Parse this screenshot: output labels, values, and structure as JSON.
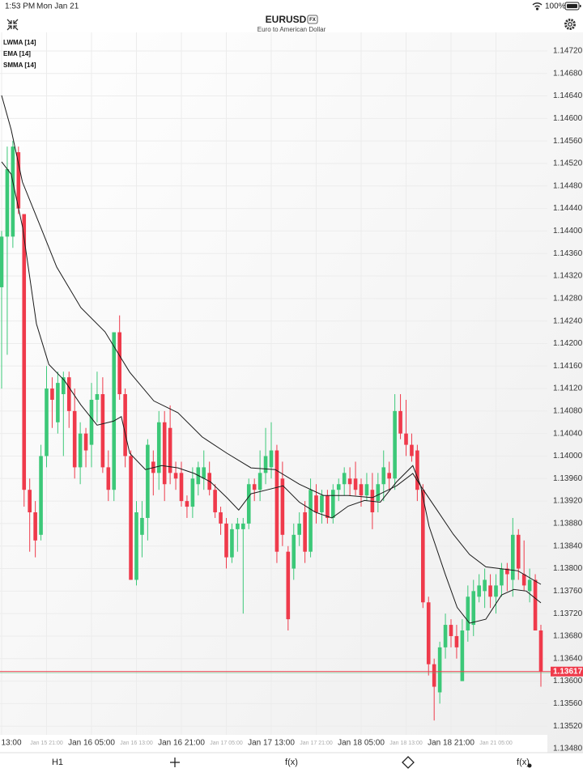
{
  "status_bar": {
    "time": "1:53 PM",
    "date": "Mon Jan 21",
    "battery": "100%"
  },
  "header": {
    "symbol": "EURUSD",
    "badge": "FX",
    "subtitle": "Euro to American Dollar"
  },
  "indicators": [
    "LWMA [14]",
    "EMA [14]",
    "SMMA [14]"
  ],
  "chart_data": {
    "type": "candlestick",
    "up_color": "#3cc878",
    "down_color": "#ef3a4b",
    "grid": true,
    "ylim": [
      1.1348,
      1.14753
    ],
    "yticks": [
      {
        "value": 1.1472,
        "label": "1.14720"
      },
      {
        "value": 1.1468,
        "label": "1.14680"
      },
      {
        "value": 1.1464,
        "label": "1.14640"
      },
      {
        "value": 1.146,
        "label": "1.14600"
      },
      {
        "value": 1.1456,
        "label": "1.14560"
      },
      {
        "value": 1.1452,
        "label": "1.14520"
      },
      {
        "value": 1.1448,
        "label": "1.14480"
      },
      {
        "value": 1.1444,
        "label": "1.14440"
      },
      {
        "value": 1.144,
        "label": "1.14400"
      },
      {
        "value": 1.1436,
        "label": "1.14360"
      },
      {
        "value": 1.1432,
        "label": "1.14320"
      },
      {
        "value": 1.1428,
        "label": "1.14280"
      },
      {
        "value": 1.1424,
        "label": "1.14240"
      },
      {
        "value": 1.142,
        "label": "1.14200"
      },
      {
        "value": 1.1416,
        "label": "1.14160"
      },
      {
        "value": 1.1412,
        "label": "1.14120"
      },
      {
        "value": 1.1408,
        "label": "1.14080"
      },
      {
        "value": 1.1404,
        "label": "1.14040"
      },
      {
        "value": 1.14,
        "label": "1.14000"
      },
      {
        "value": 1.1396,
        "label": "1.13960"
      },
      {
        "value": 1.1392,
        "label": "1.13920"
      },
      {
        "value": 1.1388,
        "label": "1.13880"
      },
      {
        "value": 1.1384,
        "label": "1.13840"
      },
      {
        "value": 1.138,
        "label": "1.13800"
      },
      {
        "value": 1.1376,
        "label": "1.13760"
      },
      {
        "value": 1.1372,
        "label": "1.13720"
      },
      {
        "value": 1.1368,
        "label": "1.13680"
      },
      {
        "value": 1.1364,
        "label": "1.13640"
      },
      {
        "value": 1.136,
        "label": "1.13600"
      },
      {
        "value": 1.1356,
        "label": "1.13560"
      },
      {
        "value": 1.1352,
        "label": "1.13520"
      },
      {
        "value": 1.1348,
        "label": "1.13480"
      }
    ],
    "x_labels": [
      {
        "at": 0,
        "label": "13:00",
        "major": true
      },
      {
        "at": 8,
        "label": "Jan 15 21:00",
        "major": false
      },
      {
        "at": 16,
        "label": "Jan 16 05:00",
        "major": true
      },
      {
        "at": 24,
        "label": "Jan 16 13:00",
        "major": false
      },
      {
        "at": 32,
        "label": "Jan 16 21:00",
        "major": true
      },
      {
        "at": 40,
        "label": "Jan 17 05:00",
        "major": false
      },
      {
        "at": 48,
        "label": "Jan 17 13:00",
        "major": true
      },
      {
        "at": 56,
        "label": "Jan 17 21:00",
        "major": false
      },
      {
        "at": 64,
        "label": "Jan 18 05:00",
        "major": true
      },
      {
        "at": 72,
        "label": "Jan 18 13:00",
        "major": false
      },
      {
        "at": 80,
        "label": "Jan 18 21:00",
        "major": true
      },
      {
        "at": 88,
        "label": "Jan 21 05:00",
        "major": false
      }
    ],
    "ohlc": [
      [
        1.143,
        1.144,
        1.1412,
        1.1439
      ],
      [
        1.1439,
        1.1455,
        1.1418,
        1.1451
      ],
      [
        1.1439,
        1.1456,
        1.1437,
        1.1455
      ],
      [
        1.1454,
        1.1455,
        1.1443,
        1.1444
      ],
      [
        1.1443,
        1.1443,
        1.1391,
        1.1394
      ],
      [
        1.1394,
        1.1396,
        1.1383,
        1.139
      ],
      [
        1.139,
        1.1392,
        1.1382,
        1.1385
      ],
      [
        1.1386,
        1.1402,
        1.1385,
        1.14
      ],
      [
        1.14,
        1.1416,
        1.1398,
        1.1412
      ],
      [
        1.1412,
        1.1414,
        1.1405,
        1.141
      ],
      [
        1.1406,
        1.1415,
        1.1404,
        1.1413
      ],
      [
        1.1411,
        1.1415,
        1.14,
        1.1414
      ],
      [
        1.1414,
        1.1415,
        1.1405,
        1.1408
      ],
      [
        1.1408,
        1.1412,
        1.1396,
        1.1398
      ],
      [
        1.1398,
        1.1406,
        1.1395,
        1.1404
      ],
      [
        1.1404,
        1.1405,
        1.1398,
        1.1401
      ],
      [
        1.1402,
        1.1413,
        1.1398,
        1.141
      ],
      [
        1.141,
        1.1415,
        1.1406,
        1.1411
      ],
      [
        1.1411,
        1.1414,
        1.1397,
        1.1398
      ],
      [
        1.1398,
        1.1401,
        1.1392,
        1.1394
      ],
      [
        1.1394,
        1.1422,
        1.1392,
        1.1422
      ],
      [
        1.1422,
        1.1425,
        1.141,
        1.1411
      ],
      [
        1.1411,
        1.1412,
        1.1398,
        1.14
      ],
      [
        1.14,
        1.1401,
        1.1378,
        1.1378
      ],
      [
        1.1378,
        1.1392,
        1.1377,
        1.139
      ],
      [
        1.1386,
        1.1392,
        1.1382,
        1.1389
      ],
      [
        1.1389,
        1.1403,
        1.1385,
        1.1402
      ],
      [
        1.1399,
        1.1401,
        1.1393,
        1.1397
      ],
      [
        1.1397,
        1.1408,
        1.1394,
        1.1406
      ],
      [
        1.1406,
        1.1408,
        1.1392,
        1.1395
      ],
      [
        1.1405,
        1.1409,
        1.1395,
        1.1397
      ],
      [
        1.1397,
        1.1399,
        1.1394,
        1.1396
      ],
      [
        1.1397,
        1.1399,
        1.1391,
        1.1392
      ],
      [
        1.1392,
        1.1393,
        1.1389,
        1.1391
      ],
      [
        1.1391,
        1.1398,
        1.1389,
        1.1396
      ],
      [
        1.1395,
        1.1399,
        1.1393,
        1.1398
      ],
      [
        1.1396,
        1.1401,
        1.1394,
        1.1398
      ],
      [
        1.1397,
        1.1399,
        1.1393,
        1.1394
      ],
      [
        1.1394,
        1.1395,
        1.1389,
        1.139
      ],
      [
        1.139,
        1.1391,
        1.1386,
        1.1388
      ],
      [
        1.1388,
        1.1389,
        1.138,
        1.1382
      ],
      [
        1.1382,
        1.1388,
        1.1381,
        1.1387
      ],
      [
        1.1387,
        1.1389,
        1.1383,
        1.1388
      ],
      [
        1.1387,
        1.1389,
        1.1372,
        1.1388
      ],
      [
        1.1388,
        1.1396,
        1.1387,
        1.1395
      ],
      [
        1.1395,
        1.1396,
        1.1392,
        1.1394
      ],
      [
        1.1394,
        1.1401,
        1.1392,
        1.1397
      ],
      [
        1.1397,
        1.1405,
        1.1395,
        1.14
      ],
      [
        1.1398,
        1.1406,
        1.1396,
        1.1401
      ],
      [
        1.1401,
        1.1402,
        1.1381,
        1.1383
      ],
      [
        1.1396,
        1.1399,
        1.1384,
        1.1386
      ],
      [
        1.1383,
        1.1384,
        1.1369,
        1.1371
      ],
      [
        1.138,
        1.1388,
        1.1378,
        1.1386
      ],
      [
        1.1386,
        1.139,
        1.1384,
        1.1388
      ],
      [
        1.139,
        1.1392,
        1.1381,
        1.1383
      ],
      [
        1.1383,
        1.1396,
        1.1382,
        1.1394
      ],
      [
        1.1393,
        1.1395,
        1.1388,
        1.139
      ],
      [
        1.139,
        1.1394,
        1.1388,
        1.1393
      ],
      [
        1.1393,
        1.1394,
        1.1388,
        1.1389
      ],
      [
        1.1389,
        1.1395,
        1.1388,
        1.1394
      ],
      [
        1.1394,
        1.1396,
        1.1392,
        1.1395
      ],
      [
        1.1395,
        1.1398,
        1.1393,
        1.1397
      ],
      [
        1.1396,
        1.1398,
        1.1393,
        1.1395
      ],
      [
        1.1396,
        1.1399,
        1.1393,
        1.1394
      ],
      [
        1.1395,
        1.1396,
        1.1391,
        1.1393
      ],
      [
        1.1393,
        1.1397,
        1.1392,
        1.1395
      ],
      [
        1.1394,
        1.1397,
        1.1387,
        1.139
      ],
      [
        1.1392,
        1.1397,
        1.139,
        1.1395
      ],
      [
        1.1395,
        1.1401,
        1.1392,
        1.1398
      ],
      [
        1.1397,
        1.1399,
        1.1394,
        1.1396
      ],
      [
        1.1396,
        1.1411,
        1.1394,
        1.1408
      ],
      [
        1.1408,
        1.1411,
        1.1403,
        1.1404
      ],
      [
        1.1404,
        1.141,
        1.14,
        1.1402
      ],
      [
        1.1402,
        1.1404,
        1.1399,
        1.14
      ],
      [
        1.1401,
        1.1402,
        1.1392,
        1.1394
      ],
      [
        1.1394,
        1.1395,
        1.1373,
        1.1374
      ],
      [
        1.1374,
        1.1375,
        1.1361,
        1.1363
      ],
      [
        1.1363,
        1.1364,
        1.1353,
        1.1359
      ],
      [
        1.1358,
        1.1367,
        1.1356,
        1.1366
      ],
      [
        1.1366,
        1.1372,
        1.1364,
        1.137
      ],
      [
        1.137,
        1.1371,
        1.1366,
        1.1368
      ],
      [
        1.1368,
        1.137,
        1.1364,
        1.1366
      ],
      [
        1.136,
        1.1371,
        1.136,
        1.1369
      ],
      [
        1.1369,
        1.1377,
        1.1367,
        1.1375
      ],
      [
        1.137,
        1.1378,
        1.1368,
        1.1376
      ],
      [
        1.1375,
        1.1379,
        1.1374,
        1.1377
      ],
      [
        1.1376,
        1.138,
        1.1373,
        1.1378
      ],
      [
        1.1377,
        1.1379,
        1.1373,
        1.1375
      ],
      [
        1.1375,
        1.1379,
        1.1372,
        1.1377
      ],
      [
        1.1377,
        1.1381,
        1.1375,
        1.138
      ],
      [
        1.138,
        1.1381,
        1.1376,
        1.1379
      ],
      [
        1.1378,
        1.1389,
        1.1375,
        1.1386
      ],
      [
        1.1386,
        1.1387,
        1.1378,
        1.138
      ],
      [
        1.1379,
        1.1385,
        1.1376,
        1.1377
      ],
      [
        1.1376,
        1.138,
        1.1374,
        1.1378
      ],
      [
        1.1378,
        1.1379,
        1.1369,
        1.1369
      ],
      [
        1.1369,
        1.137,
        1.1359,
        1.13617
      ]
    ],
    "lines": [
      {
        "color": "#1a1a1a",
        "x": [
          0,
          1.7,
          3.7,
          6.9,
          9.8,
          14.1,
          18.4,
          22.8,
          27.1,
          31.4,
          35.7,
          40.1,
          44.4,
          48.7,
          53,
          57.3,
          61.7,
          66,
          70.3,
          73.2,
          74.6,
          77.5,
          80.4,
          83.3,
          86.2,
          91.9,
          96
        ],
        "values": [
          1.14641,
          1.1458,
          1.14487,
          1.14408,
          1.14336,
          1.14264,
          1.14221,
          1.14149,
          1.14098,
          1.14077,
          1.14034,
          1.14005,
          1.13979,
          1.13976,
          1.1395,
          1.1393,
          1.1393,
          1.13926,
          1.13947,
          1.13969,
          1.13947,
          1.13904,
          1.13861,
          1.13825,
          1.13803,
          1.13796,
          1.13772
        ]
      },
      {
        "color": "#1a1a1a",
        "x": [
          0,
          1.7,
          3.7,
          6.2,
          8.4,
          11.2,
          14.1,
          17,
          19.9,
          21.3,
          22.8,
          25.6,
          28.5,
          31.4,
          34.3,
          37.2,
          40.1,
          42.2,
          44.4,
          47.3,
          50.1,
          53,
          55.9,
          58.8,
          61.7,
          64.6,
          67.4,
          70.3,
          73.2,
          74.6,
          76.1,
          79,
          81.1,
          83.3,
          86.2,
          89,
          91.2,
          93.4,
          96
        ],
        "values": [
          1.14523,
          1.14501,
          1.14408,
          1.14235,
          1.14163,
          1.14134,
          1.14091,
          1.14055,
          1.14062,
          1.1407,
          1.14005,
          1.13976,
          1.13983,
          1.13979,
          1.13969,
          1.13954,
          1.13926,
          1.13904,
          1.13933,
          1.1394,
          1.13947,
          1.13918,
          1.139,
          1.1389,
          1.13911,
          1.13921,
          1.13918,
          1.13954,
          1.13983,
          1.13947,
          1.13875,
          1.13789,
          1.13731,
          1.13703,
          1.1371,
          1.13753,
          1.13763,
          1.1376,
          1.13739
        ]
      }
    ],
    "last_price": {
      "value": 1.13617,
      "label": "1.13617"
    }
  },
  "toolbar": {
    "timeframe": "H1",
    "functions": "f(x)",
    "templates": "f(x)"
  }
}
